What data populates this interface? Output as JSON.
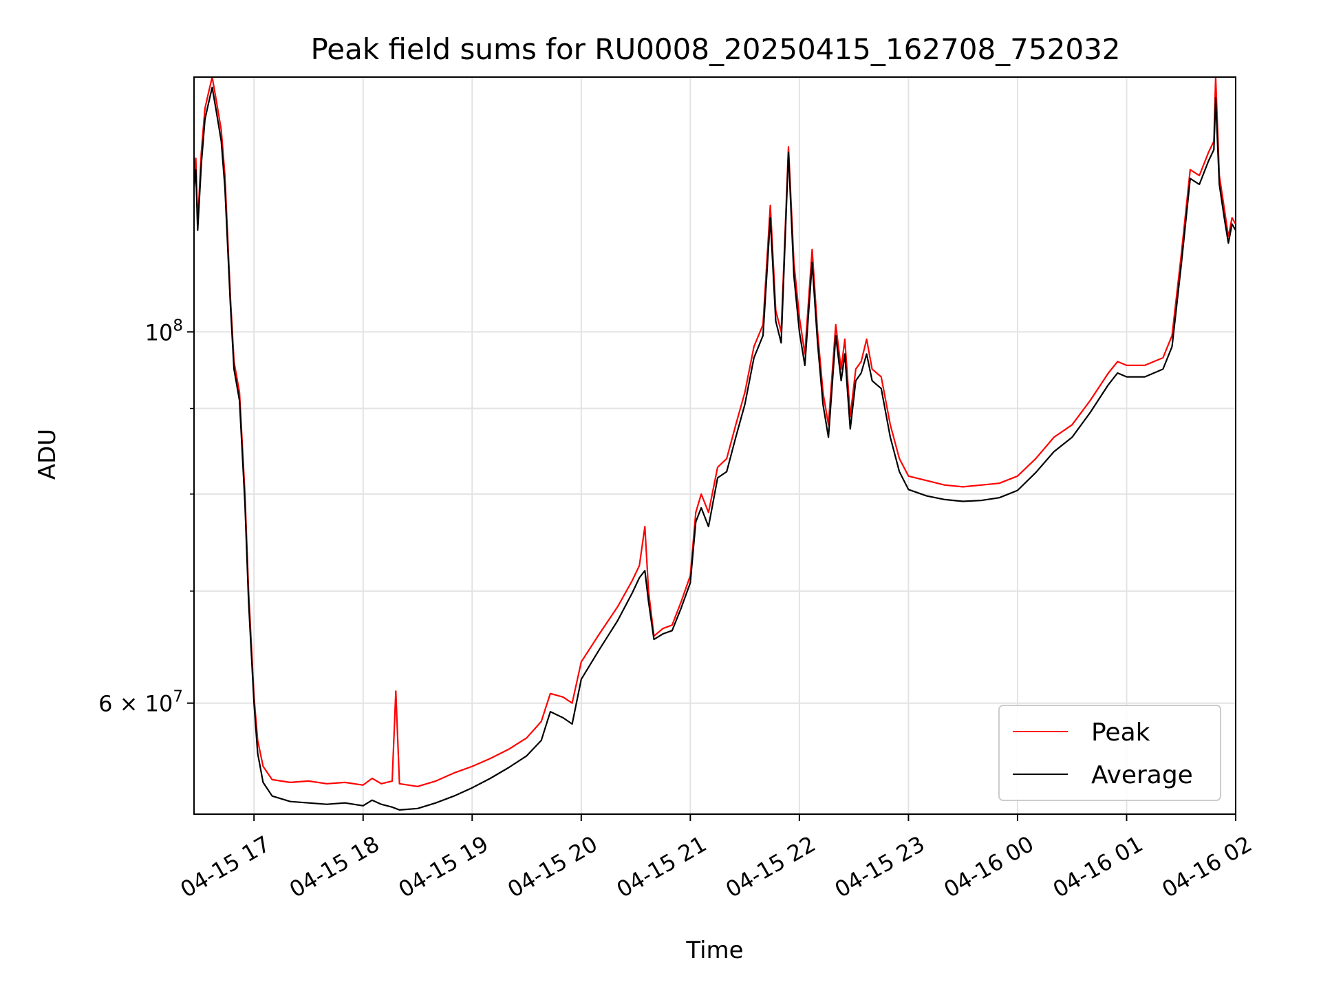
{
  "chart_data": {
    "type": "line",
    "title": "Peak field sums for RU0008_20250415_162708_752032",
    "xlabel": "Time",
    "ylabel": "ADU",
    "yscale": "log",
    "xlim": [
      "2025-04-15 16:27",
      "2025-04-16 02:00"
    ],
    "ylim": [
      51500000,
      142000000
    ],
    "grid": true,
    "legend_position": "bottom-right",
    "x_ticks": [
      {
        "t": "2025-04-15 17:00",
        "label": "04-15 17"
      },
      {
        "t": "2025-04-15 18:00",
        "label": "04-15 18"
      },
      {
        "t": "2025-04-15 19:00",
        "label": "04-15 19"
      },
      {
        "t": "2025-04-15 20:00",
        "label": "04-15 20"
      },
      {
        "t": "2025-04-15 21:00",
        "label": "04-15 21"
      },
      {
        "t": "2025-04-15 22:00",
        "label": "04-15 22"
      },
      {
        "t": "2025-04-15 23:00",
        "label": "04-15 23"
      },
      {
        "t": "2025-04-16 00:00",
        "label": "04-16 00"
      },
      {
        "t": "2025-04-16 01:00",
        "label": "04-16 01"
      },
      {
        "t": "2025-04-16 02:00",
        "label": "04-16 02"
      }
    ],
    "y_major_ticks": [
      {
        "v": 60000000,
        "base": "6 × 10",
        "exp": "7"
      },
      {
        "v": 100000000,
        "base": "10",
        "exp": "8"
      }
    ],
    "y_minor_ticks": [
      60000000,
      70000000,
      80000000,
      90000000,
      100000000
    ],
    "series": [
      {
        "name": "Peak",
        "color": "#ff0000",
        "points": [
          [
            "2025-04-15 16:27",
            124000000
          ],
          [
            "2025-04-15 16:28",
            127000000
          ],
          [
            "2025-04-15 16:29",
            116000000
          ],
          [
            "2025-04-15 16:31",
            128000000
          ],
          [
            "2025-04-15 16:33",
            136000000
          ],
          [
            "2025-04-15 16:35",
            139000000
          ],
          [
            "2025-04-15 16:37",
            142000000
          ],
          [
            "2025-04-15 16:39",
            138000000
          ],
          [
            "2025-04-15 16:42",
            132000000
          ],
          [
            "2025-04-15 16:44",
            124000000
          ],
          [
            "2025-04-15 16:47",
            105000000
          ],
          [
            "2025-04-15 16:49",
            96000000
          ],
          [
            "2025-04-15 16:52",
            92000000
          ],
          [
            "2025-04-15 16:55",
            80000000
          ],
          [
            "2025-04-15 16:57",
            70000000
          ],
          [
            "2025-04-15 17:00",
            60500000
          ],
          [
            "2025-04-15 17:02",
            57000000
          ],
          [
            "2025-04-15 17:05",
            55000000
          ],
          [
            "2025-04-15 17:10",
            54000000
          ],
          [
            "2025-04-15 17:20",
            53800000
          ],
          [
            "2025-04-15 17:30",
            53900000
          ],
          [
            "2025-04-15 17:40",
            53700000
          ],
          [
            "2025-04-15 17:50",
            53800000
          ],
          [
            "2025-04-15 18:00",
            53600000
          ],
          [
            "2025-04-15 18:05",
            54100000
          ],
          [
            "2025-04-15 18:10",
            53700000
          ],
          [
            "2025-04-15 18:16",
            53900000
          ],
          [
            "2025-04-15 18:18",
            61000000
          ],
          [
            "2025-04-15 18:20",
            53700000
          ],
          [
            "2025-04-15 18:30",
            53500000
          ],
          [
            "2025-04-15 18:40",
            53900000
          ],
          [
            "2025-04-15 18:50",
            54500000
          ],
          [
            "2025-04-15 19:00",
            55000000
          ],
          [
            "2025-04-15 19:10",
            55600000
          ],
          [
            "2025-04-15 19:20",
            56300000
          ],
          [
            "2025-04-15 19:30",
            57200000
          ],
          [
            "2025-04-15 19:38",
            58500000
          ],
          [
            "2025-04-15 19:43",
            60800000
          ],
          [
            "2025-04-15 19:50",
            60500000
          ],
          [
            "2025-04-15 19:55",
            60000000
          ],
          [
            "2025-04-15 20:00",
            63500000
          ],
          [
            "2025-04-15 20:10",
            66000000
          ],
          [
            "2025-04-15 20:20",
            68500000
          ],
          [
            "2025-04-15 20:28",
            71000000
          ],
          [
            "2025-04-15 20:32",
            72500000
          ],
          [
            "2025-04-15 20:35",
            76500000
          ],
          [
            "2025-04-15 20:37",
            70000000
          ],
          [
            "2025-04-15 20:40",
            65800000
          ],
          [
            "2025-04-15 20:45",
            66500000
          ],
          [
            "2025-04-15 20:50",
            66800000
          ],
          [
            "2025-04-15 20:55",
            69000000
          ],
          [
            "2025-04-15 21:00",
            71500000
          ],
          [
            "2025-04-15 21:03",
            78000000
          ],
          [
            "2025-04-15 21:06",
            80000000
          ],
          [
            "2025-04-15 21:10",
            78000000
          ],
          [
            "2025-04-15 21:15",
            83000000
          ],
          [
            "2025-04-15 21:20",
            84000000
          ],
          [
            "2025-04-15 21:25",
            88000000
          ],
          [
            "2025-04-15 21:30",
            92000000
          ],
          [
            "2025-04-15 21:35",
            98000000
          ],
          [
            "2025-04-15 21:40",
            101000000
          ],
          [
            "2025-04-15 21:44",
            119000000
          ],
          [
            "2025-04-15 21:47",
            103000000
          ],
          [
            "2025-04-15 21:50",
            100000000
          ],
          [
            "2025-04-15 21:54",
            129000000
          ],
          [
            "2025-04-15 21:57",
            110000000
          ],
          [
            "2025-04-15 22:00",
            102000000
          ],
          [
            "2025-04-15 22:03",
            97000000
          ],
          [
            "2025-04-15 22:07",
            112000000
          ],
          [
            "2025-04-15 22:10",
            100000000
          ],
          [
            "2025-04-15 22:13",
            92000000
          ],
          [
            "2025-04-15 22:16",
            88000000
          ],
          [
            "2025-04-15 22:20",
            101000000
          ],
          [
            "2025-04-15 22:23",
            95000000
          ],
          [
            "2025-04-15 22:25",
            99000000
          ],
          [
            "2025-04-15 22:28",
            89000000
          ],
          [
            "2025-04-15 22:31",
            95000000
          ],
          [
            "2025-04-15 22:34",
            96000000
          ],
          [
            "2025-04-15 22:37",
            99000000
          ],
          [
            "2025-04-15 22:40",
            95000000
          ],
          [
            "2025-04-15 22:45",
            94000000
          ],
          [
            "2025-04-15 22:50",
            88000000
          ],
          [
            "2025-04-15 22:55",
            84000000
          ],
          [
            "2025-04-15 23:00",
            82000000
          ],
          [
            "2025-04-15 23:10",
            81500000
          ],
          [
            "2025-04-15 23:20",
            81000000
          ],
          [
            "2025-04-15 23:30",
            80800000
          ],
          [
            "2025-04-15 23:40",
            81000000
          ],
          [
            "2025-04-15 23:50",
            81200000
          ],
          [
            "2025-04-16 00:00",
            82000000
          ],
          [
            "2025-04-16 00:10",
            84000000
          ],
          [
            "2025-04-16 00:20",
            86500000
          ],
          [
            "2025-04-16 00:30",
            88000000
          ],
          [
            "2025-04-16 00:40",
            91000000
          ],
          [
            "2025-04-16 00:50",
            94500000
          ],
          [
            "2025-04-16 00:55",
            96000000
          ],
          [
            "2025-04-16 01:00",
            95500000
          ],
          [
            "2025-04-16 01:10",
            95500000
          ],
          [
            "2025-04-16 01:20",
            96500000
          ],
          [
            "2025-04-16 01:25",
            99500000
          ],
          [
            "2025-04-16 01:30",
            111000000
          ],
          [
            "2025-04-16 01:35",
            125000000
          ],
          [
            "2025-04-16 01:40",
            124000000
          ],
          [
            "2025-04-16 01:45",
            128000000
          ],
          [
            "2025-04-16 01:48",
            130000000
          ],
          [
            "2025-04-16 01:49",
            142000000
          ],
          [
            "2025-04-16 01:51",
            124000000
          ],
          [
            "2025-04-16 01:54",
            118000000
          ],
          [
            "2025-04-16 01:56",
            114000000
          ],
          [
            "2025-04-16 01:58",
            117000000
          ],
          [
            "2025-04-16 02:00",
            116000000
          ]
        ]
      },
      {
        "name": "Average",
        "color": "#000000",
        "points": [
          [
            "2025-04-15 16:27",
            122000000
          ],
          [
            "2025-04-15 16:28",
            125000000
          ],
          [
            "2025-04-15 16:29",
            115000000
          ],
          [
            "2025-04-15 16:31",
            126000000
          ],
          [
            "2025-04-15 16:33",
            134000000
          ],
          [
            "2025-04-15 16:35",
            137000000
          ],
          [
            "2025-04-15 16:37",
            140000000
          ],
          [
            "2025-04-15 16:39",
            136000000
          ],
          [
            "2025-04-15 16:42",
            130000000
          ],
          [
            "2025-04-15 16:44",
            122000000
          ],
          [
            "2025-04-15 16:47",
            104000000
          ],
          [
            "2025-04-15 16:49",
            95000000
          ],
          [
            "2025-04-15 16:52",
            91000000
          ],
          [
            "2025-04-15 16:55",
            79000000
          ],
          [
            "2025-04-15 16:57",
            69000000
          ],
          [
            "2025-04-15 17:00",
            60000000
          ],
          [
            "2025-04-15 17:02",
            56000000
          ],
          [
            "2025-04-15 17:05",
            53800000
          ],
          [
            "2025-04-15 17:10",
            52800000
          ],
          [
            "2025-04-15 17:20",
            52400000
          ],
          [
            "2025-04-15 17:30",
            52300000
          ],
          [
            "2025-04-15 17:40",
            52200000
          ],
          [
            "2025-04-15 17:50",
            52300000
          ],
          [
            "2025-04-15 18:00",
            52100000
          ],
          [
            "2025-04-15 18:05",
            52500000
          ],
          [
            "2025-04-15 18:10",
            52200000
          ],
          [
            "2025-04-15 18:16",
            52000000
          ],
          [
            "2025-04-15 18:20",
            51800000
          ],
          [
            "2025-04-15 18:30",
            51900000
          ],
          [
            "2025-04-15 18:40",
            52300000
          ],
          [
            "2025-04-15 18:50",
            52800000
          ],
          [
            "2025-04-15 19:00",
            53400000
          ],
          [
            "2025-04-15 19:10",
            54100000
          ],
          [
            "2025-04-15 19:20",
            54900000
          ],
          [
            "2025-04-15 19:30",
            55800000
          ],
          [
            "2025-04-15 19:38",
            57000000
          ],
          [
            "2025-04-15 19:43",
            59300000
          ],
          [
            "2025-04-15 19:50",
            58800000
          ],
          [
            "2025-04-15 19:55",
            58300000
          ],
          [
            "2025-04-15 20:00",
            62000000
          ],
          [
            "2025-04-15 20:10",
            64600000
          ],
          [
            "2025-04-15 20:20",
            67200000
          ],
          [
            "2025-04-15 20:28",
            69800000
          ],
          [
            "2025-04-15 20:32",
            71300000
          ],
          [
            "2025-04-15 20:35",
            72000000
          ],
          [
            "2025-04-15 20:37",
            69000000
          ],
          [
            "2025-04-15 20:40",
            65500000
          ],
          [
            "2025-04-15 20:45",
            66000000
          ],
          [
            "2025-04-15 20:50",
            66300000
          ],
          [
            "2025-04-15 20:55",
            68400000
          ],
          [
            "2025-04-15 21:00",
            70800000
          ],
          [
            "2025-04-15 21:03",
            77000000
          ],
          [
            "2025-04-15 21:06",
            78500000
          ],
          [
            "2025-04-15 21:10",
            76500000
          ],
          [
            "2025-04-15 21:15",
            81800000
          ],
          [
            "2025-04-15 21:20",
            82500000
          ],
          [
            "2025-04-15 21:25",
            86500000
          ],
          [
            "2025-04-15 21:30",
            90500000
          ],
          [
            "2025-04-15 21:35",
            96500000
          ],
          [
            "2025-04-15 21:40",
            99500000
          ],
          [
            "2025-04-15 21:44",
            117000000
          ],
          [
            "2025-04-15 21:47",
            101500000
          ],
          [
            "2025-04-15 21:50",
            98500000
          ],
          [
            "2025-04-15 21:54",
            128000000
          ],
          [
            "2025-04-15 21:57",
            108000000
          ],
          [
            "2025-04-15 22:00",
            100000000
          ],
          [
            "2025-04-15 22:03",
            95500000
          ],
          [
            "2025-04-15 22:07",
            110000000
          ],
          [
            "2025-04-15 22:10",
            98500000
          ],
          [
            "2025-04-15 22:13",
            90500000
          ],
          [
            "2025-04-15 22:16",
            86500000
          ],
          [
            "2025-04-15 22:20",
            99500000
          ],
          [
            "2025-04-15 22:23",
            93500000
          ],
          [
            "2025-04-15 22:25",
            97000000
          ],
          [
            "2025-04-15 22:28",
            87500000
          ],
          [
            "2025-04-15 22:31",
            93500000
          ],
          [
            "2025-04-15 22:34",
            94500000
          ],
          [
            "2025-04-15 22:37",
            97000000
          ],
          [
            "2025-04-15 22:40",
            93500000
          ],
          [
            "2025-04-15 22:45",
            92500000
          ],
          [
            "2025-04-15 22:50",
            86500000
          ],
          [
            "2025-04-15 22:55",
            82500000
          ],
          [
            "2025-04-15 23:00",
            80500000
          ],
          [
            "2025-04-15 23:10",
            79800000
          ],
          [
            "2025-04-15 23:20",
            79400000
          ],
          [
            "2025-04-15 23:30",
            79200000
          ],
          [
            "2025-04-15 23:40",
            79300000
          ],
          [
            "2025-04-15 23:50",
            79600000
          ],
          [
            "2025-04-16 00:00",
            80400000
          ],
          [
            "2025-04-16 00:10",
            82400000
          ],
          [
            "2025-04-16 00:20",
            84800000
          ],
          [
            "2025-04-16 00:30",
            86500000
          ],
          [
            "2025-04-16 00:40",
            89500000
          ],
          [
            "2025-04-16 00:50",
            93000000
          ],
          [
            "2025-04-16 00:55",
            94500000
          ],
          [
            "2025-04-16 01:00",
            94000000
          ],
          [
            "2025-04-16 01:10",
            94000000
          ],
          [
            "2025-04-16 01:20",
            95000000
          ],
          [
            "2025-04-16 01:25",
            98000000
          ],
          [
            "2025-04-16 01:30",
            109500000
          ],
          [
            "2025-04-16 01:35",
            123500000
          ],
          [
            "2025-04-16 01:40",
            122500000
          ],
          [
            "2025-04-16 01:45",
            126500000
          ],
          [
            "2025-04-16 01:48",
            128500000
          ],
          [
            "2025-04-16 01:49",
            138000000
          ],
          [
            "2025-04-16 01:51",
            122500000
          ],
          [
            "2025-04-16 01:54",
            116500000
          ],
          [
            "2025-04-16 01:56",
            113000000
          ],
          [
            "2025-04-16 01:58",
            116000000
          ],
          [
            "2025-04-16 02:00",
            115000000
          ]
        ]
      }
    ]
  }
}
